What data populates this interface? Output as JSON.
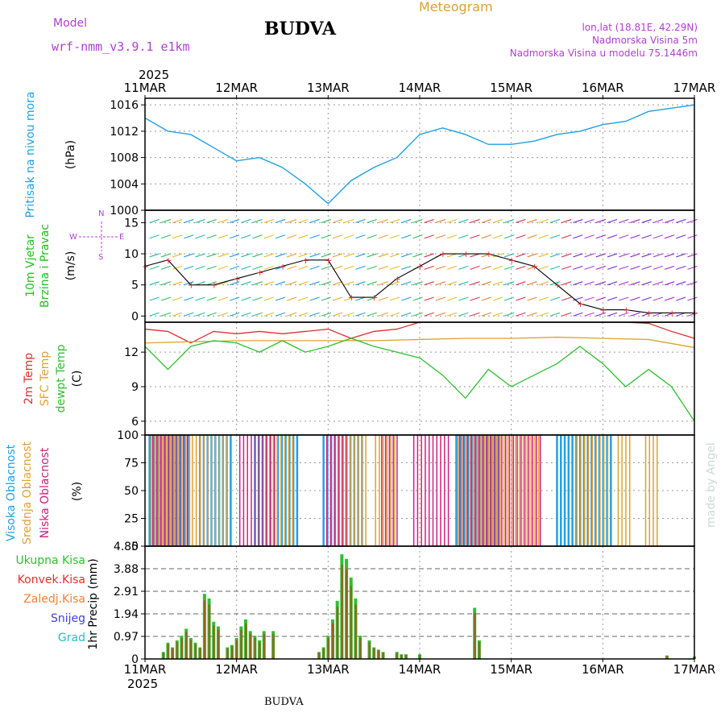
{
  "header": {
    "model_label": "Model",
    "model_value": "wrf-nmm_v3.9.1  e1km",
    "title": "BUDVA",
    "meteogram_label": "Meteogram",
    "coords": "lon,lat (18.81E, 42.29N)",
    "elevation": "Nadmorska Visina 5m",
    "model_elevation": "Nadmorska Visina u modelu 75.1446m",
    "year_top": "2025",
    "year_bottom": "2025",
    "footer": "BUDVA",
    "watermark": "made by Angel"
  },
  "colors": {
    "pressure": "#1ea0e6",
    "wind_label": "#20c020",
    "temp2m": "#e03030",
    "sfc_temp": "#e0a030",
    "dewpt": "#30c030",
    "high_cloud": "#20a0e6",
    "mid_cloud": "#e0a030",
    "low_cloud": "#d02080",
    "ukupna": "#30c030",
    "konvek": "#e03030",
    "zaledj": "#f08030",
    "snijeg": "#4040e0",
    "grad": "#20c0c0",
    "purple": "#b040d0"
  },
  "x_axis": {
    "ticks": [
      "11MAR",
      "12MAR",
      "13MAR",
      "14MAR",
      "15MAR",
      "16MAR",
      "17MAR"
    ]
  },
  "chart_data": [
    {
      "type": "line",
      "panel": "pressure",
      "ylabel_lines": [
        "Pritisak na nivou mora"
      ],
      "unit": "(hPa)",
      "ylim": [
        1000,
        1017
      ],
      "yticks": [
        "1000",
        "1004",
        "1008",
        "1012",
        "1016"
      ],
      "x": [
        0,
        0.25,
        0.5,
        0.75,
        1,
        1.25,
        1.5,
        1.75,
        2,
        2.25,
        2.5,
        2.75,
        3,
        3.25,
        3.5,
        3.75,
        4,
        4.25,
        4.5,
        4.75,
        5,
        5.25,
        5.5,
        5.75,
        6
      ],
      "values": [
        1014,
        1012,
        1011.5,
        1009.5,
        1007.5,
        1008,
        1006.5,
        1004,
        1001,
        1004.5,
        1006.5,
        1008,
        1011.5,
        1012.5,
        1011.5,
        1010,
        1010,
        1010.5,
        1011.5,
        1012,
        1013,
        1013.5,
        1015,
        1015.5,
        1016
      ]
    },
    {
      "type": "line",
      "panel": "wind",
      "ylabel_lines": [
        "10m Vjetar",
        "Brzina i Pravac"
      ],
      "unit": "(m/s)",
      "ylim": [
        -1,
        17
      ],
      "yticks": [
        "0",
        "5",
        "10",
        "15"
      ],
      "compass": [
        "N",
        "E",
        "S",
        "W"
      ],
      "x": [
        0,
        0.25,
        0.5,
        0.75,
        1,
        1.25,
        1.5,
        1.75,
        2,
        2.25,
        2.5,
        2.75,
        3,
        3.25,
        3.5,
        3.75,
        4,
        4.25,
        4.5,
        4.75,
        5,
        5.25,
        5.5,
        5.75,
        6
      ],
      "values": [
        8,
        9,
        5,
        5,
        6,
        7,
        8,
        9,
        9,
        3,
        3,
        6,
        8,
        10,
        10,
        10,
        9,
        8,
        5,
        2,
        1,
        1,
        0.5,
        0.5,
        0.5
      ]
    },
    {
      "type": "line",
      "panel": "temperature",
      "ylabel_lines": [
        "2m Temp",
        "SFC Temp",
        "dewpt Temp"
      ],
      "unit": "(C)",
      "ylim": [
        4.8,
        14.6
      ],
      "yticks": [
        "6",
        "9",
        "12"
      ],
      "series": [
        {
          "name": "2m Temp",
          "x": [
            0,
            0.25,
            0.5,
            0.75,
            1,
            1.25,
            1.5,
            1.75,
            2,
            2.25,
            2.5,
            2.75,
            3,
            3.25,
            3.5,
            3.75,
            4,
            4.25,
            4.5,
            4.75,
            5,
            5.25,
            5.5,
            5.75,
            6
          ],
          "values": [
            14,
            13.8,
            12.8,
            13.8,
            13.6,
            13.8,
            13.6,
            13.8,
            14,
            13.2,
            13.8,
            14,
            14.6,
            14.6,
            14.6,
            14.6,
            14.6,
            14.6,
            14.6,
            14.6,
            14.6,
            14.6,
            14.5,
            13.8,
            13.2
          ]
        },
        {
          "name": "SFC Temp",
          "x": [
            0,
            0.5,
            1,
            1.5,
            2,
            2.5,
            3,
            3.5,
            4,
            4.5,
            5,
            5.5,
            6
          ],
          "values": [
            12.8,
            12.9,
            13,
            13,
            13,
            13,
            13.1,
            13.2,
            13.2,
            13.3,
            13.2,
            13.1,
            12.4
          ]
        },
        {
          "name": "dewpt Temp",
          "x": [
            0,
            0.25,
            0.5,
            0.75,
            1,
            1.25,
            1.5,
            1.75,
            2,
            2.25,
            2.5,
            2.75,
            3,
            3.25,
            3.5,
            3.75,
            4,
            4.25,
            4.5,
            4.75,
            5,
            5.25,
            5.5,
            5.75,
            6
          ],
          "values": [
            12.5,
            10.5,
            12.5,
            13,
            12.8,
            12,
            13,
            12,
            12.5,
            13.2,
            12.5,
            12,
            11.5,
            10,
            8,
            10.5,
            9,
            10,
            11,
            12.5,
            11,
            9,
            10.5,
            9,
            6
          ]
        }
      ]
    },
    {
      "type": "bar",
      "panel": "clouds",
      "ylabel_lines": [
        "Visoka Oblacnost",
        "Srednja Oblacnost",
        "Niska Oblacnost"
      ],
      "unit": "(%)",
      "ylim": [
        0,
        100
      ],
      "yticks": [
        "0",
        "25",
        "50",
        "75",
        "100"
      ],
      "series": [
        {
          "name": "Visoka Oblacnost",
          "segments": [
            [
              0.05,
              0.5
            ],
            [
              0.6,
              0.95
            ],
            [
              1.2,
              1.7
            ],
            [
              1.95,
              2.4
            ],
            [
              3.4,
              3.9
            ],
            [
              4.5,
              5.1
            ]
          ],
          "level": 100
        },
        {
          "name": "Srednja Oblacnost",
          "segments": [
            [
              0.05,
              0.5
            ],
            [
              0.5,
              0.9
            ],
            [
              1.3,
              1.6
            ],
            [
              2.1,
              2.4
            ],
            [
              2.5,
              2.75
            ],
            [
              3.4,
              4.3
            ],
            [
              4.7,
              5.05
            ],
            [
              5.15,
              5.3
            ],
            [
              5.45,
              5.6
            ]
          ],
          "level": 100
        },
        {
          "name": "Niska Oblacnost",
          "segments": [
            [
              0.05,
              0.45
            ],
            [
              1.0,
              1.4
            ],
            [
              1.95,
              2.2
            ],
            [
              2.55,
              2.75
            ],
            [
              2.9,
              3.3
            ],
            [
              3.4,
              4.3
            ]
          ],
          "level": 100
        }
      ]
    },
    {
      "type": "bar",
      "panel": "precip",
      "ylabel_lines": [
        "1hr Precip (mm)"
      ],
      "legend": [
        "Ukupna Kisa",
        "Konvek.Kisa",
        "Zaledj.Kisa",
        "Snijeg",
        "Grad"
      ],
      "ylim": [
        0,
        4.85
      ],
      "yticks": [
        "0",
        "0.97",
        "1.94",
        "2.91",
        "3.88",
        "4.85"
      ],
      "x": [
        0.2,
        0.25,
        0.3,
        0.35,
        0.4,
        0.45,
        0.5,
        0.55,
        0.6,
        0.65,
        0.7,
        0.75,
        0.8,
        0.9,
        0.95,
        1.0,
        1.05,
        1.1,
        1.15,
        1.2,
        1.25,
        1.3,
        1.4,
        1.9,
        1.95,
        2.0,
        2.05,
        2.1,
        2.15,
        2.2,
        2.25,
        2.3,
        2.35,
        2.45,
        2.5,
        2.55,
        2.6,
        2.75,
        2.8,
        2.85,
        3.0,
        3.6,
        3.65,
        5.7,
        6.0
      ],
      "values": [
        0.3,
        0.7,
        0.5,
        0.8,
        1.0,
        1.3,
        0.9,
        0.7,
        0.5,
        2.8,
        2.6,
        1.6,
        1.4,
        0.5,
        0.6,
        0.9,
        1.4,
        1.7,
        1.2,
        1.0,
        0.8,
        1.2,
        1.2,
        0.3,
        0.5,
        1.0,
        1.7,
        2.5,
        4.5,
        4.3,
        3.5,
        2.6,
        1.0,
        0.8,
        0.5,
        0.4,
        0.3,
        0.3,
        0.2,
        0.2,
        0.2,
        2.2,
        0.8,
        0.15,
        0.1
      ]
    }
  ]
}
